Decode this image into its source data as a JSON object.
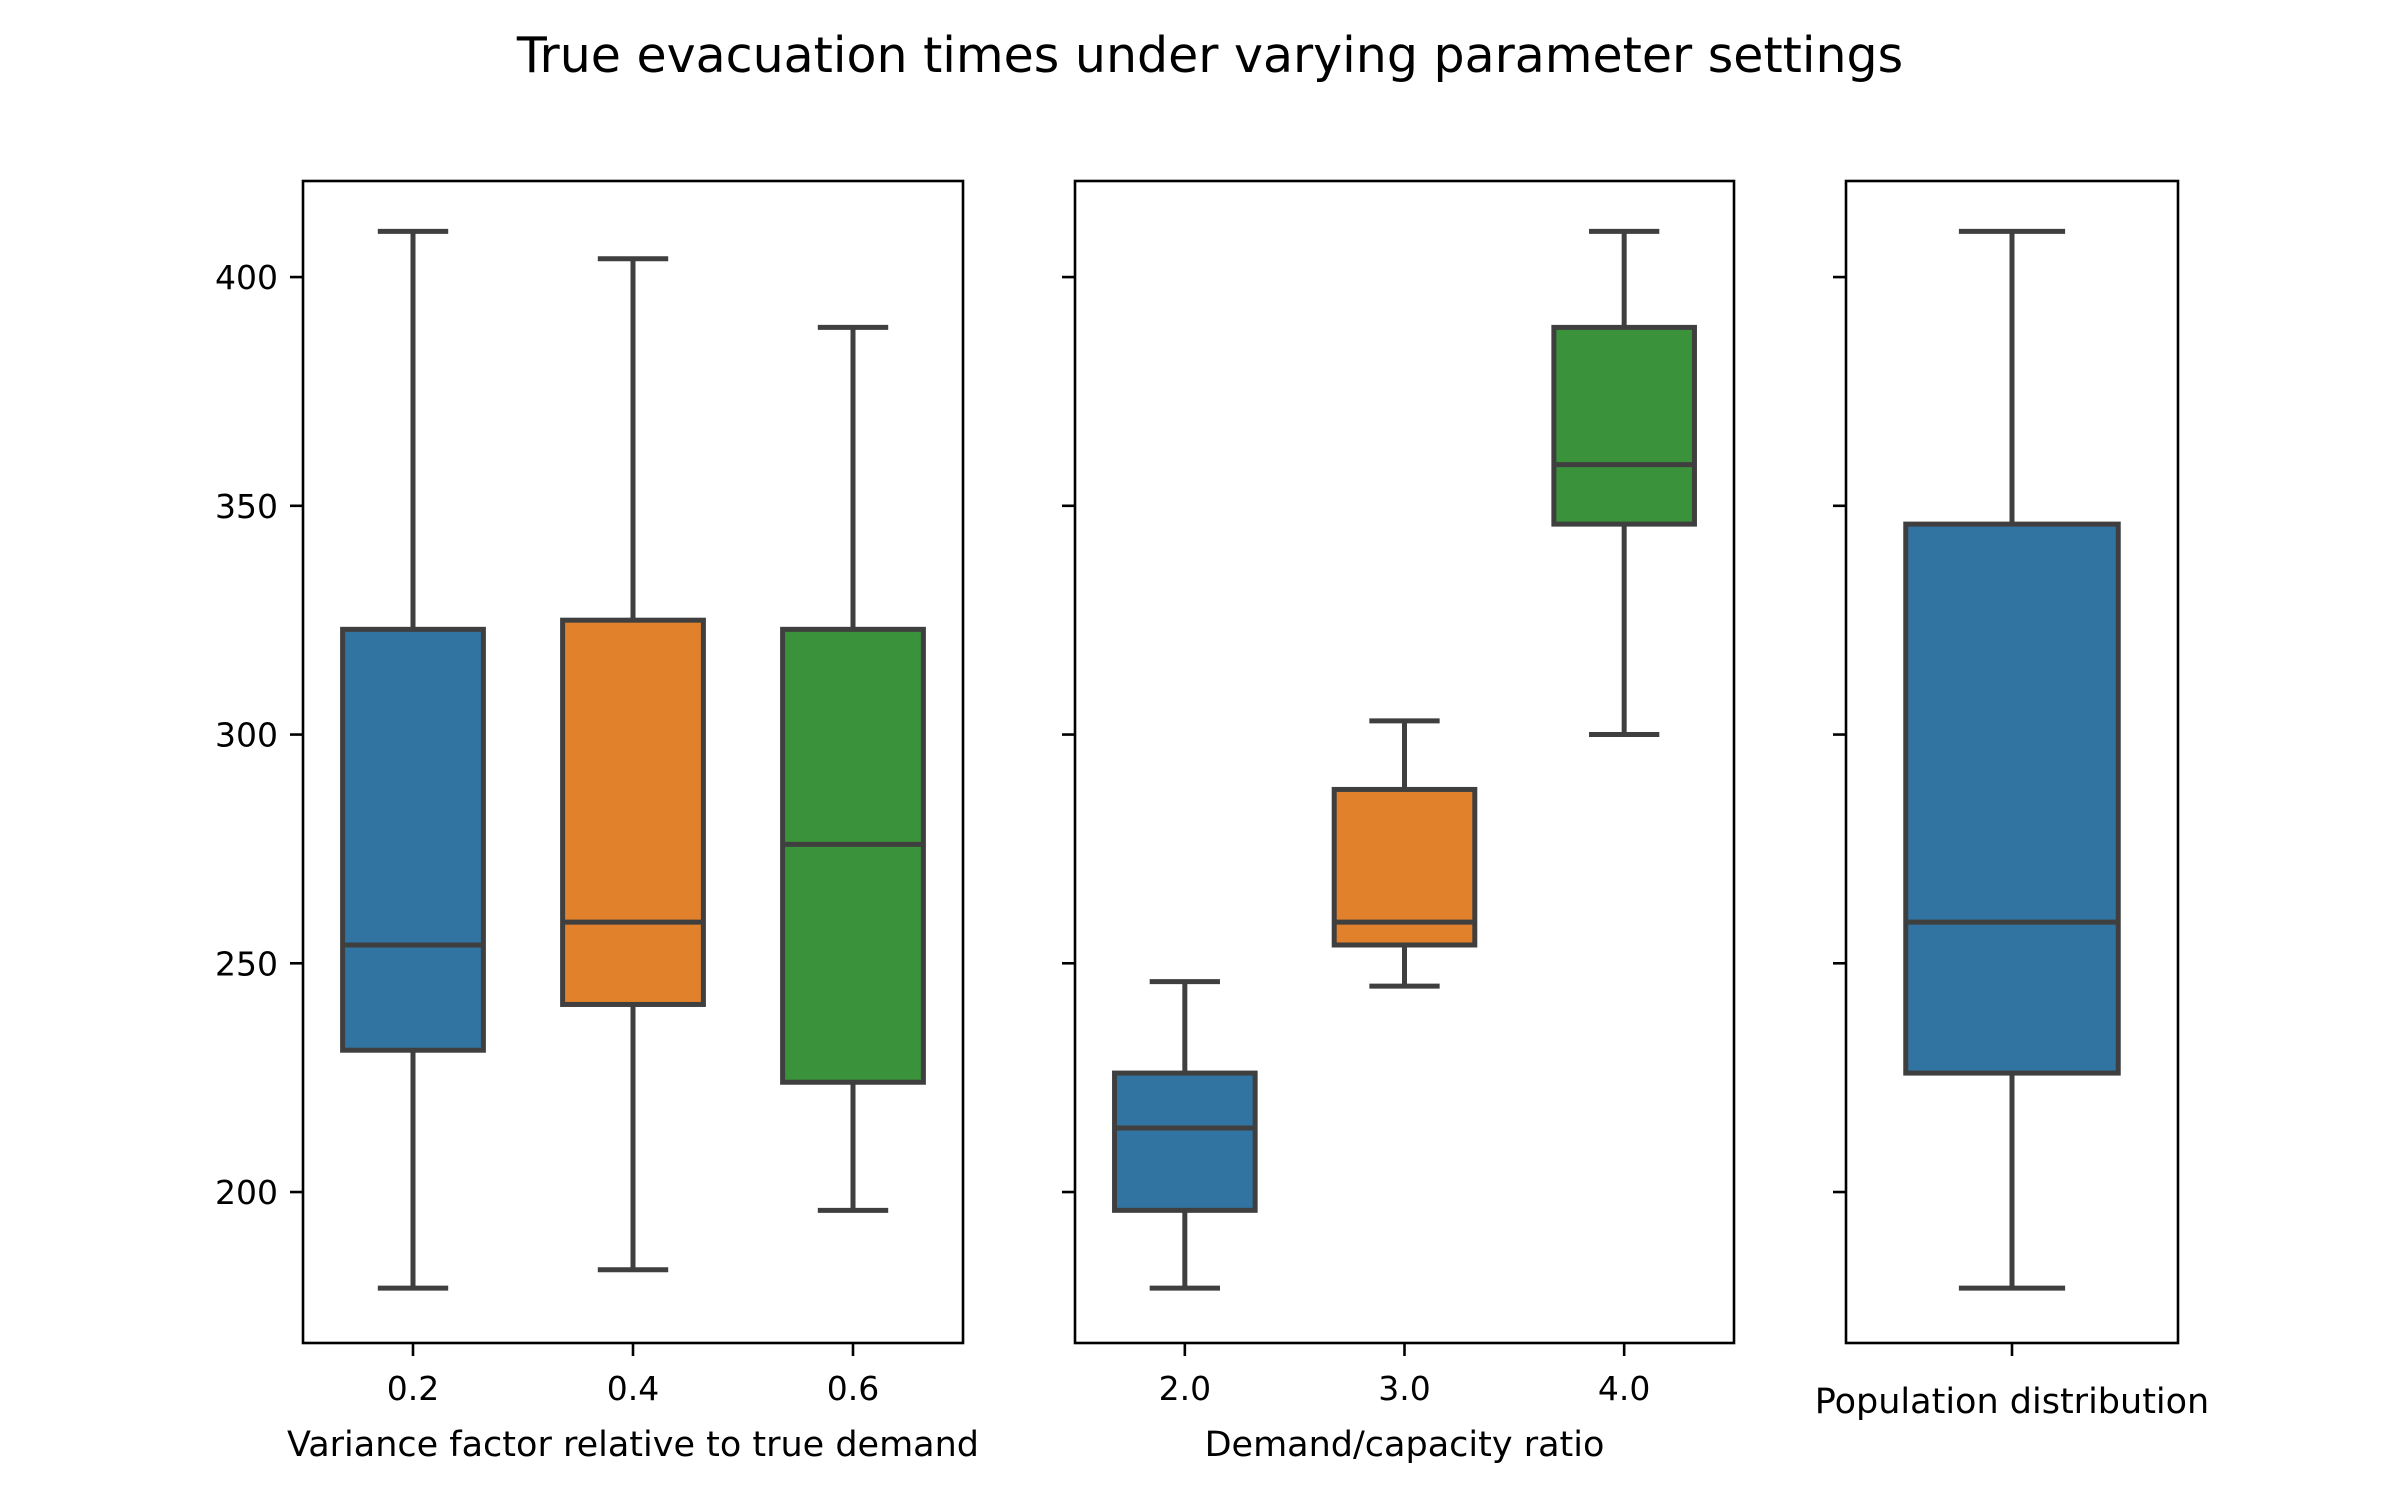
{
  "chart_data": {
    "type": "box",
    "title": "True evacuation times under varying parameter settings",
    "shared_y": true,
    "ylim": [
      167,
      421
    ],
    "yticks": [
      200,
      250,
      300,
      350,
      400
    ],
    "grid": false,
    "panels": [
      {
        "xlabel": "Variance factor relative to true demand",
        "categories": [
          "0.2",
          "0.4",
          "0.6"
        ],
        "colors": [
          "#3274a1",
          "#e1812c",
          "#3a923a"
        ],
        "boxes": [
          {
            "category": "0.2",
            "whislo": 179,
            "q1": 231,
            "med": 254,
            "q3": 323,
            "whishi": 410
          },
          {
            "category": "0.4",
            "whislo": 183,
            "q1": 241,
            "med": 259,
            "q3": 325,
            "whishi": 404
          },
          {
            "category": "0.6",
            "whislo": 196,
            "q1": 224,
            "med": 276,
            "q3": 323,
            "whishi": 389
          }
        ]
      },
      {
        "xlabel": "Demand/capacity ratio",
        "categories": [
          "2.0",
          "3.0",
          "4.0"
        ],
        "colors": [
          "#3274a1",
          "#e1812c",
          "#3a923a"
        ],
        "boxes": [
          {
            "category": "2.0",
            "whislo": 179,
            "q1": 196,
            "med": 214,
            "q3": 226,
            "whishi": 246
          },
          {
            "category": "3.0",
            "whislo": 245,
            "q1": 254,
            "med": 259,
            "q3": 288,
            "whishi": 303
          },
          {
            "category": "4.0",
            "whislo": 300,
            "q1": 346,
            "med": 359,
            "q3": 389,
            "whishi": 410
          }
        ]
      },
      {
        "xlabel": "Population distribution",
        "categories": [
          ""
        ],
        "colors": [
          "#3274a1"
        ],
        "boxes": [
          {
            "category": "",
            "whislo": 179,
            "q1": 226,
            "med": 259,
            "q3": 346,
            "whishi": 410
          }
        ]
      }
    ]
  }
}
